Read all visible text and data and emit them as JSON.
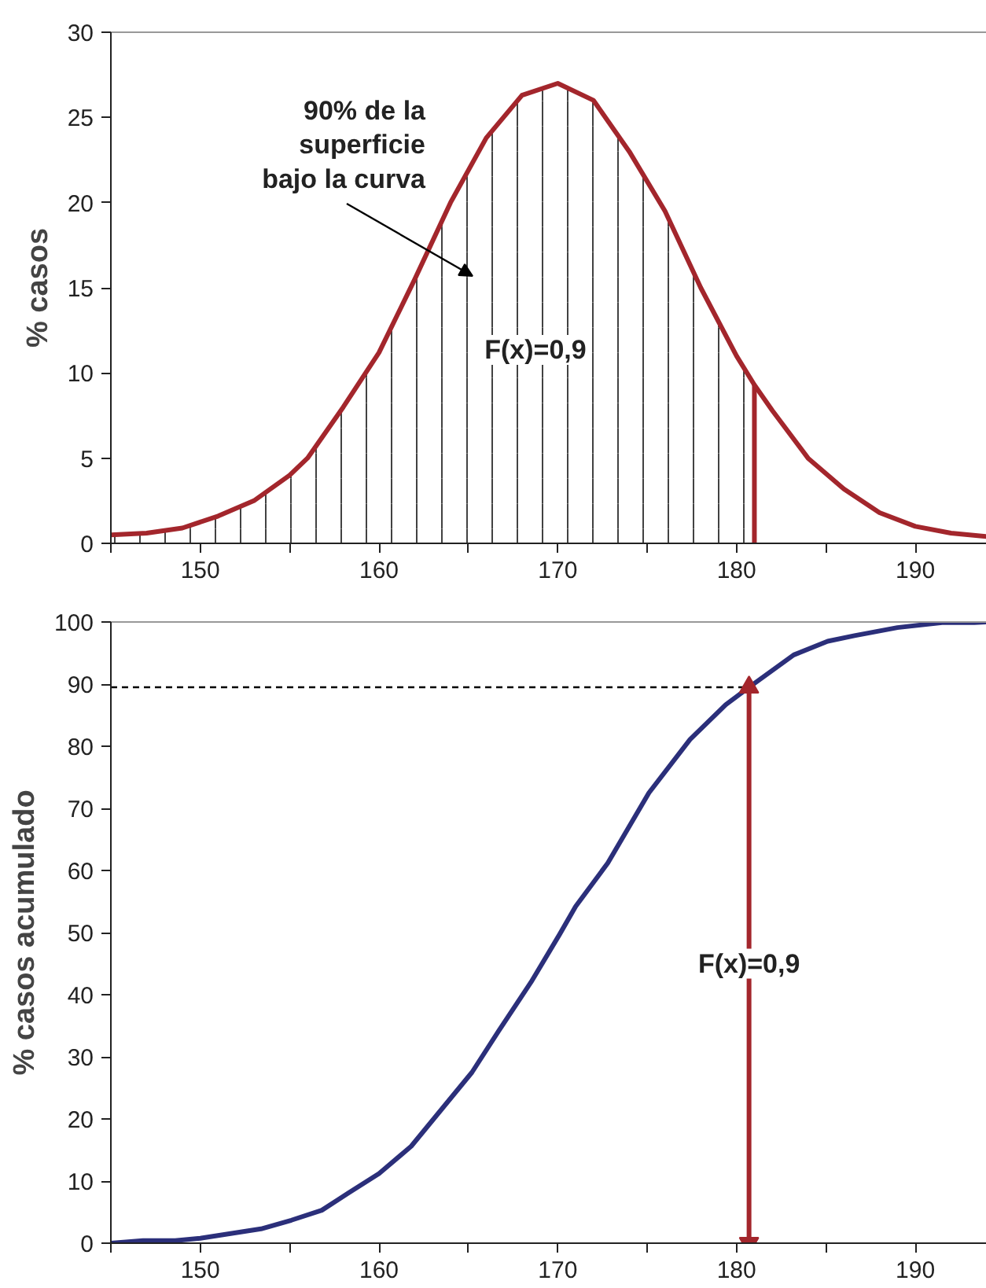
{
  "chart_data": [
    {
      "type": "line",
      "ylabel": "% casos",
      "xlim": [
        145,
        194
      ],
      "ylim": [
        0,
        30
      ],
      "xticks": [
        {
          "value": 145,
          "label": null
        },
        150,
        {
          "value": 155,
          "label": null
        },
        160,
        {
          "value": 165,
          "label": null
        },
        170,
        {
          "value": 175,
          "label": null
        },
        180,
        {
          "value": 185,
          "label": null
        },
        190
      ],
      "yticks": [
        0,
        5,
        10,
        15,
        20,
        25,
        30
      ],
      "grid": false,
      "marker": "none",
      "line_style": "solid",
      "series": [
        {
          "type": "area",
          "color": "#111111",
          "x": [
            145,
            147,
            149,
            151,
            153,
            155,
            156,
            158,
            160,
            162,
            164,
            166,
            168,
            170,
            172,
            174,
            176,
            178,
            180,
            181
          ],
          "values": [
            0.5,
            0.6,
            0.9,
            1.6,
            2.5,
            4.0,
            5.0,
            8.0,
            11.2,
            15.5,
            20.0,
            23.8,
            26.3,
            27.0,
            26.0,
            23.0,
            19.5,
            15.0,
            11.0,
            9.3
          ]
        },
        {
          "color": "#a3262c",
          "x": [
            181,
            181
          ],
          "values": [
            0,
            9.3
          ]
        },
        {
          "color": "#a3262c",
          "x": [
            145,
            147,
            149,
            151,
            153,
            155,
            156,
            158,
            160,
            162,
            164,
            166,
            168,
            170,
            172,
            174,
            176,
            178,
            180,
            181,
            182,
            184,
            186,
            188,
            190,
            192,
            194
          ],
          "values": [
            0.5,
            0.6,
            0.9,
            1.6,
            2.5,
            4.0,
            5.0,
            8.0,
            11.2,
            15.5,
            20.0,
            23.8,
            26.3,
            27.0,
            26.0,
            23.0,
            19.5,
            15.0,
            11.0,
            9.3,
            7.8,
            5.0,
            3.2,
            1.8,
            1.0,
            0.6,
            0.4
          ]
        }
      ],
      "annotations": [
        "90% de la\nsuperficie\nbajo la curva",
        "F(x)=0,9"
      ]
    },
    {
      "type": "line",
      "ylabel": "% casos acumulado",
      "xlim": [
        145,
        194
      ],
      "ylim": [
        0,
        100
      ],
      "xticks": [
        {
          "value": 145,
          "label": null
        },
        150,
        {
          "value": 155,
          "label": null
        },
        160,
        {
          "value": 165,
          "label": null
        },
        170,
        {
          "value": 175,
          "label": null
        },
        180,
        {
          "value": 185,
          "label": null
        },
        190
      ],
      "yticks": [
        0,
        10,
        20,
        30,
        40,
        50,
        60,
        70,
        80,
        90,
        100
      ],
      "grid": false,
      "marker": "none",
      "series": [
        {
          "color": "#2b2f7a",
          "line_style": "solid",
          "x": [
            145,
            146.8,
            148.6,
            150,
            153.4,
            155.1,
            156.8,
            158.3,
            160,
            161.8,
            163.4,
            165.2,
            166.7,
            168.5,
            170.1,
            171,
            172.8,
            175.1,
            177.4,
            179.4,
            180.8,
            183.2,
            185.1,
            186.6,
            189,
            191.5,
            193.3,
            194
          ],
          "values": [
            0,
            0.4,
            0.4,
            0.8,
            2.3,
            3.7,
            5.3,
            8.1,
            11.2,
            15.6,
            21.2,
            27.5,
            34.2,
            42,
            49.7,
            54.2,
            61.2,
            72.5,
            81.1,
            86.7,
            89.7,
            94.7,
            96.9,
            97.8,
            99.1,
            99.9,
            99.9,
            100
          ]
        },
        {
          "color": "#000000",
          "line_style": "dashed",
          "x": [
            145,
            180.7
          ],
          "values": [
            89.5,
            89.5
          ]
        },
        {
          "color": "#a3262c",
          "line_style": "solid",
          "marker": "triangle",
          "x": [
            180.7,
            180.7
          ],
          "values": [
            0,
            89.5
          ]
        }
      ],
      "annotations": [
        {
          "text": "F(x)=0,9",
          "x": 180.7,
          "y": 45
        }
      ]
    }
  ]
}
